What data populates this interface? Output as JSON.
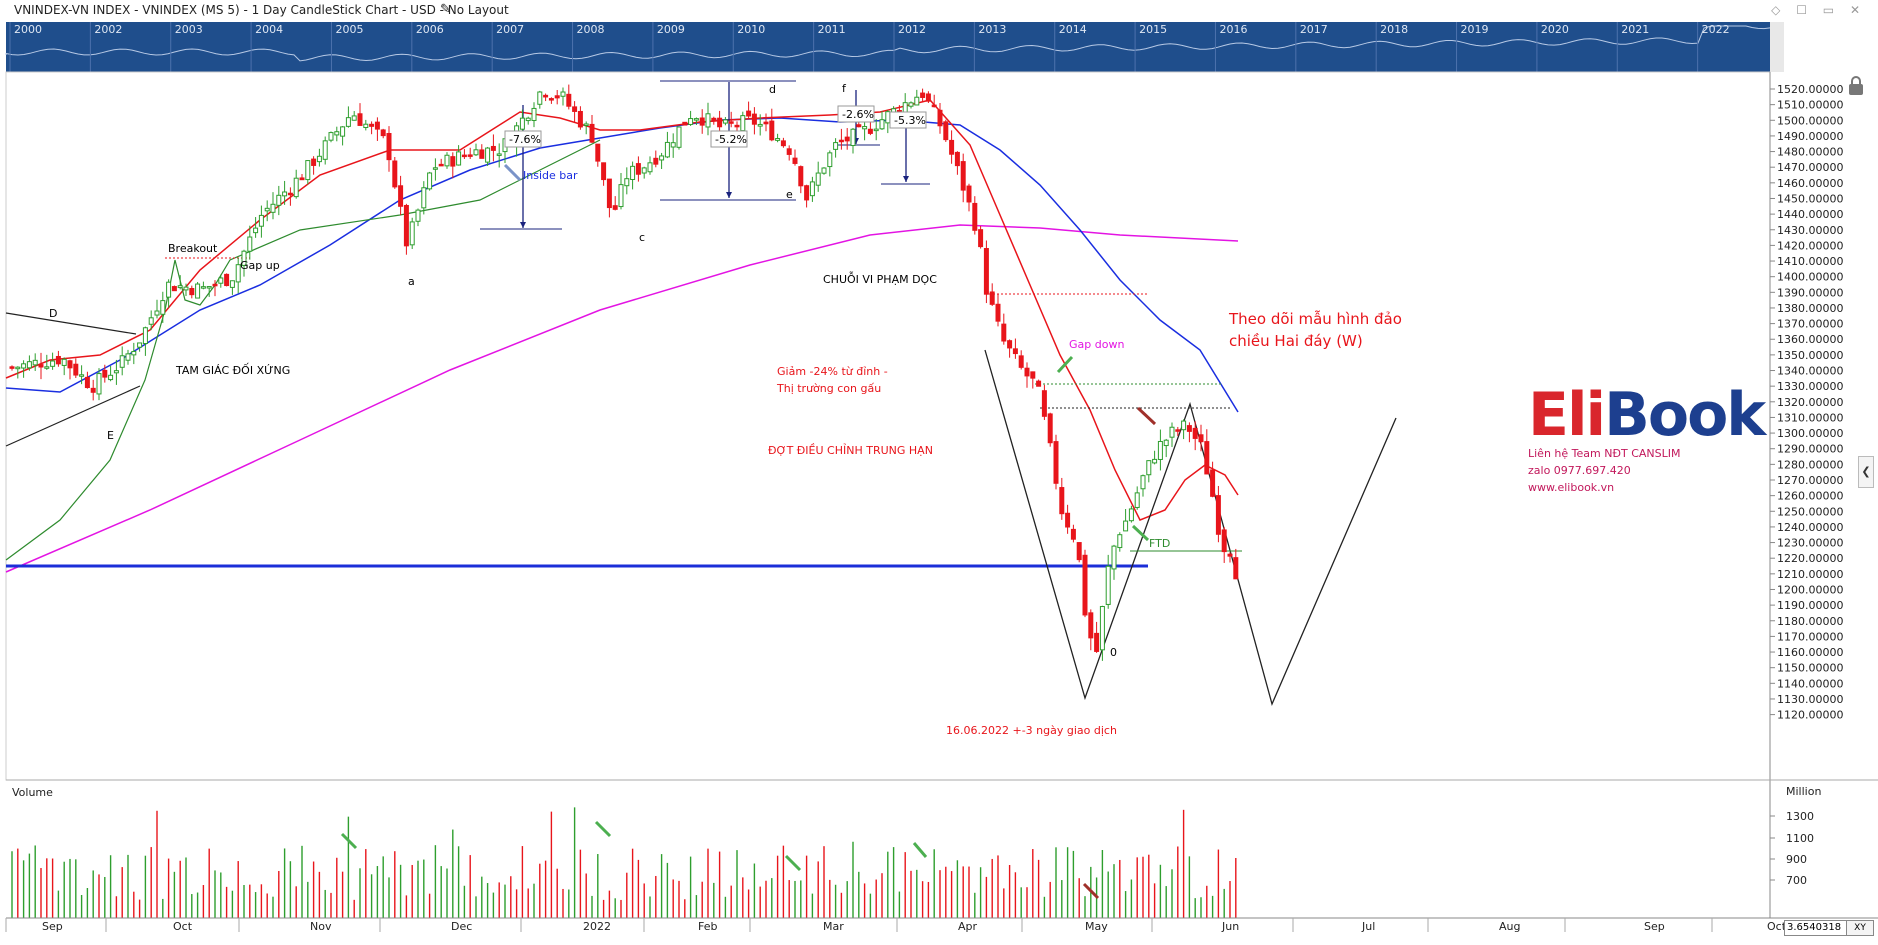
{
  "window": {
    "title": "VNINDEX-VN INDEX - VNINDEX (MS 5) - 1 Day CandleStick Chart - USD - No Layout"
  },
  "navigator": {
    "years": [
      "2000",
      "2002",
      "2003",
      "2004",
      "2005",
      "2006",
      "2007",
      "2008",
      "2009",
      "2010",
      "2011",
      "2012",
      "2013",
      "2014",
      "2015",
      "2016",
      "2017",
      "2018",
      "2019",
      "2020",
      "2021",
      "2022"
    ]
  },
  "chart_data": {
    "type": "candlestick",
    "y_axis": {
      "min": 1120,
      "max": 1520,
      "step": 10,
      "labels": [
        "1520.00000",
        "1510.00000",
        "1500.00000",
        "1490.00000",
        "1480.00000",
        "1470.00000",
        "1460.00000",
        "1450.00000",
        "1440.00000",
        "1430.00000",
        "1420.00000",
        "1410.00000",
        "1400.00000",
        "1390.00000",
        "1380.00000",
        "1370.00000",
        "1360.00000",
        "1350.00000",
        "1340.00000",
        "1330.00000",
        "1320.00000",
        "1310.00000",
        "1300.00000",
        "1290.00000",
        "1280.00000",
        "1270.00000",
        "1260.00000",
        "1250.00000",
        "1240.00000",
        "1230.00000",
        "1220.00000",
        "1210.00000",
        "1200.00000",
        "1190.00000",
        "1180.00000",
        "1170.00000",
        "1160.00000",
        "1150.00000",
        "1140.00000",
        "1130.00000",
        "1120.00000"
      ]
    },
    "x_axis": {
      "labels": [
        "Sep",
        "Oct",
        "Nov",
        "Dec",
        "2022",
        "Feb",
        "Mar",
        "Apr",
        "May",
        "Jun",
        "Jul",
        "Aug",
        "Sep",
        "Oct"
      ]
    },
    "volume": {
      "title": "Volume",
      "unit": "Million",
      "y_labels": [
        "1300",
        "1100",
        "900",
        "700"
      ]
    },
    "support_line": 1226,
    "annotations": {
      "breakout": "Breakout",
      "gap_up": "Gap up",
      "tam_giac": "TAM GIÁC ĐỐI XỨNG",
      "label_d": "D",
      "label_e_upper": "E",
      "label_a": "a",
      "label_c": "c",
      "label_e": "e",
      "label_d_small": "d",
      "label_f": "f",
      "inside_bar": "Inside bar",
      "pct_1": "-7.6%",
      "pct_2": "-5.2%",
      "pct_3": "-2.6%",
      "pct_4": "-5.3%",
      "chuoi": "CHUỖI VI PHẠM DỌC",
      "giam_1": "Giảm -24% từ đỉnh -",
      "giam_2": "Thị trường con gấu",
      "dot": "ĐỢT ĐIỀU CHỈNH TRUNG HẠN",
      "gap_down": "Gap down",
      "ftd": "FTD",
      "zero": "0",
      "date_note": "16.06.2022 +-3 ngày giao dịch",
      "theo_doi_1": "Theo dõi mẫu hình đảo",
      "theo_doi_2": "chiều Hai đáy (W)"
    }
  },
  "logo": {
    "brand_left": "Eli",
    "brand_right": "Book",
    "line1": "Liên hệ Team NĐT CANSLIM",
    "line2": "zalo 0977.697.420",
    "line3": "www.elibook.vn"
  },
  "status": {
    "readout": "3.6540318",
    "xy": "XY"
  },
  "colors": {
    "navigator_bg": "#1f4e8c",
    "up": "#2e9e2e",
    "down": "#e8151b",
    "ma_red": "#e8151b",
    "ma_blue": "#1a2ee0",
    "ma_magenta": "#e314e3",
    "ma_green": "#2e8b2e",
    "support": "#1b2ed8"
  }
}
